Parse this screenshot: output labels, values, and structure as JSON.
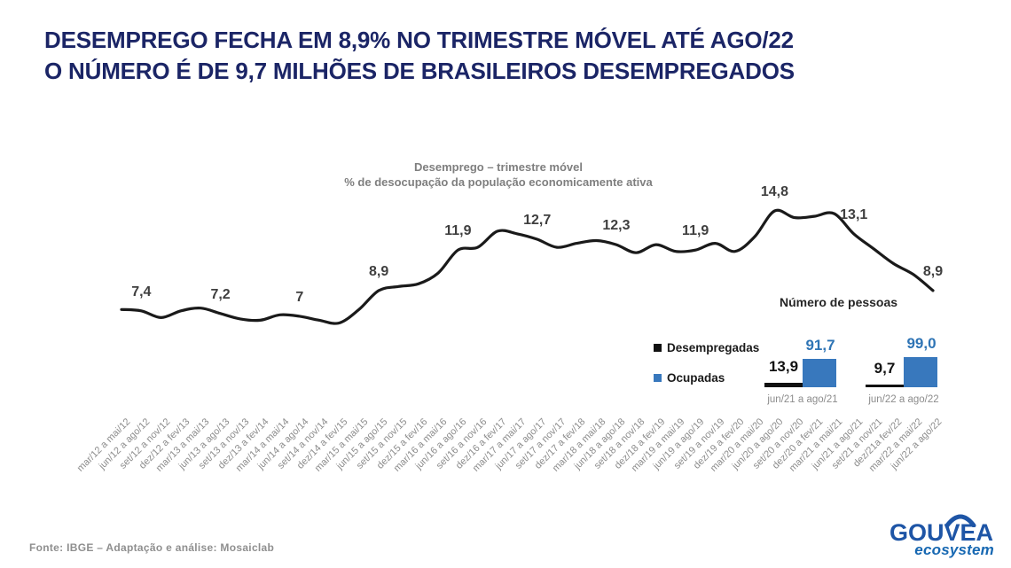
{
  "header": {
    "title_line1": "DESEMPREGO FECHA EM 8,9% NO TRIMESTRE MÓVEL ATÉ AGO/22",
    "title_line2": "O NÚMERO É DE 9,7 MILHÕES DE BRASILEIROS DESEMPREGADOS"
  },
  "chart_data": {
    "type": "line",
    "title": "Desemprego – trimestre móvel",
    "subtitle": "% de desocupação da população economicamente ativa",
    "ylim": [
      6,
      16
    ],
    "grid": false,
    "x_labels": [
      "mar/12 a mai/12",
      "jun/12 a ago/12",
      "set/12 a nov/12",
      "dez/12 a fev/13",
      "mar/13 a mai/13",
      "jun/13 a ago/13",
      "set/13 a nov/13",
      "dez/13 a fev/14",
      "mar/14 a mai/14",
      "jun/14 a ago/14",
      "set/14 a nov/14",
      "dez/14 a fev/15",
      "mar/15 a mai/15",
      "jun/15 a ago/15",
      "set/15 a nov/15",
      "dez/15 a fev/16",
      "mar/16 a mai/16",
      "jun/16 a ago/16",
      "set/16 a nov/16",
      "dez/16 a fev/17",
      "mar/17 a mai/17",
      "jun/17 a ago/17",
      "set/17 a nov/17",
      "dez/17 a fev/18",
      "mar/18 a mai/18",
      "jun/18 a ago/18",
      "set/18 a nov/18",
      "dez/18 a fev/19",
      "mar/19 a mai/19",
      "jun/19 a ago/19",
      "set/19 a nov/19",
      "dez/19 a fev/20",
      "mar/20 a mai/20",
      "jun/20 a ago/20",
      "set/20 a nov/20",
      "dez/20 a fev/21",
      "mar/21 a mai/21",
      "jun/21 a ago/21",
      "set/21 a nov/21",
      "dez/21a fev/22",
      "mar/22 a mai/22",
      "jun/22 a ago/22"
    ],
    "values": [
      7.5,
      7.4,
      6.9,
      7.4,
      7.6,
      7.2,
      6.8,
      6.7,
      7.1,
      7.0,
      6.7,
      6.5,
      7.5,
      8.9,
      9.2,
      9.4,
      10.2,
      11.9,
      12.1,
      13.3,
      13.1,
      12.7,
      12.1,
      12.4,
      12.6,
      12.3,
      11.7,
      12.3,
      11.8,
      11.9,
      12.4,
      11.8,
      12.9,
      14.8,
      14.3,
      14.4,
      14.6,
      13.1,
      12.0,
      10.9,
      10.1,
      8.9
    ],
    "labeled_points": [
      {
        "index": 1,
        "label": "7,4"
      },
      {
        "index": 5,
        "label": "7,2"
      },
      {
        "index": 9,
        "label": "7"
      },
      {
        "index": 13,
        "label": "8,9"
      },
      {
        "index": 17,
        "label": "11,9"
      },
      {
        "index": 21,
        "label": "12,7"
      },
      {
        "index": 25,
        "label": "12,3"
      },
      {
        "index": 29,
        "label": "11,9"
      },
      {
        "index": 33,
        "label": "14,8"
      },
      {
        "index": 37,
        "label": "13,1"
      },
      {
        "index": 41,
        "label": "8,9"
      }
    ]
  },
  "people_chart": {
    "title": "Número de pessoas",
    "legend": [
      {
        "label": "Desempregadas",
        "color": "#111111"
      },
      {
        "label": "Ocupadas",
        "color": "#3878bd"
      }
    ],
    "groups": [
      {
        "caption": "jun/21 a ago/21",
        "desempregadas": "13,9",
        "ocupadas": "91,7",
        "desempregadas_value": 13.9,
        "ocupadas_value": 91.7
      },
      {
        "caption": "jun/22 a ago/22",
        "desempregadas": "9,7",
        "ocupadas": "99,0",
        "desempregadas_value": 9.7,
        "ocupadas_value": 99.0
      }
    ]
  },
  "footer": {
    "source": "Fonte: IBGE – Adaptação e análise: Mosaiclab"
  },
  "logo": {
    "name": "GOUVEA",
    "subname": "ecosystem"
  },
  "colors": {
    "title_navy": "#1b2566",
    "line_black": "#1a1a1a",
    "bar_blue": "#3878bd",
    "value_blue": "#2e74b5",
    "gray_text": "#7f7f7f",
    "axis_gray": "#8c8c8c",
    "footer_gray": "#8f8f8f",
    "logo_blue": "#1e55a6",
    "logo_sub_blue": "#1768b2"
  }
}
